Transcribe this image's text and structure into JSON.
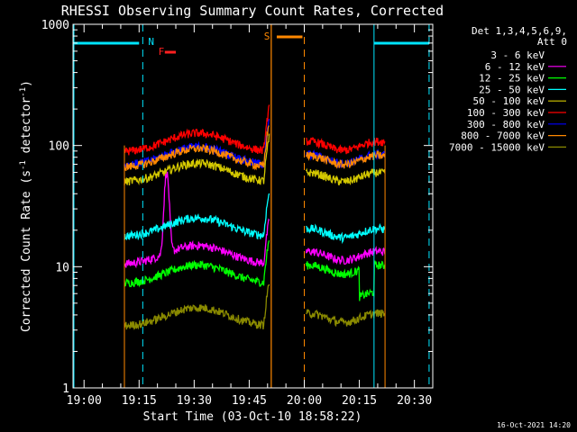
{
  "chart_data": {
    "type": "line",
    "title": "RHESSI Observing Summary Count Rates, Corrected",
    "xlabel": "Start Time (03-Oct-10 18:58:22)",
    "ylabel": "Corrected Count Rate (s⁻¹ detector⁻¹)",
    "ylabel_parts": {
      "a": "Corrected Count Rate (s",
      "b": "-1",
      "c": " detector",
      "d": "-1",
      "e": ")"
    },
    "yscale": "log",
    "ylim": [
      1,
      1000
    ],
    "xlim_minutes": [
      -3,
      95
    ],
    "x_ticks": [
      {
        "label": "19:00",
        "minute": 0
      },
      {
        "label": "19:15",
        "minute": 15
      },
      {
        "label": "19:30",
        "minute": 30
      },
      {
        "label": "19:45",
        "minute": 45
      },
      {
        "label": "20:00",
        "minute": 60
      },
      {
        "label": "20:15",
        "minute": 75
      },
      {
        "label": "20:30",
        "minute": 90
      }
    ],
    "y_ticks": [
      {
        "label": "1",
        "value": 1
      },
      {
        "label": "10",
        "value": 10
      },
      {
        "label": "100",
        "value": 100
      },
      {
        "label": "1000",
        "value": 1000
      }
    ],
    "legend_header": [
      "Det 1,3,4,5,6,9,",
      "Att 0"
    ],
    "series": [
      {
        "name": "3 - 6 keV",
        "color": "#000000"
      },
      {
        "name": "6 - 12 keV",
        "color": "#ff00ff"
      },
      {
        "name": "12 - 25 keV",
        "color": "#00ff00"
      },
      {
        "name": "25 - 50 keV",
        "color": "#00ffff"
      },
      {
        "name": "50 - 100 keV",
        "color": "#d4c800"
      },
      {
        "name": "100 - 300 keV",
        "color": "#ff0000"
      },
      {
        "name": "300 - 800 keV",
        "color": "#0000ff"
      },
      {
        "name": "800 - 7000 keV",
        "color": "#ff8800"
      },
      {
        "name": "7000 - 15000 keV",
        "color": "#8a8a00"
      }
    ],
    "approx_levels": {
      "3 - 6 keV": {
        "pre_gap": 3,
        "post_gap": 3
      },
      "6 - 12 keV": {
        "pre_gap": 13,
        "peak": 60,
        "post_gap": 13
      },
      "12 - 25 keV": {
        "pre_gap": 9,
        "post_gap": 10
      },
      "25 - 50 keV": {
        "pre_gap": 22,
        "post_gap": 20
      },
      "50 - 100 keV": {
        "pre_gap": 62,
        "post_gap": 58
      },
      "100 - 300 keV": {
        "pre_gap": 110,
        "post_gap": 105
      },
      "300 - 800 keV": {
        "pre_gap": 85,
        "post_gap": 82
      },
      "800 - 7000 keV": {
        "pre_gap": 82,
        "post_gap": 80
      },
      "7000 - 15000 keV": {
        "pre_gap": 4,
        "post_gap": 4
      }
    },
    "flag_labels": {
      "night": "N",
      "flare": "F",
      "saa": "S"
    },
    "night_intervals_minutes": [
      [
        -3,
        16
      ],
      [
        79,
        94
      ]
    ],
    "saa_interval_minutes": [
      52,
      58
    ],
    "flare_interval_minutes": [
      22,
      25
    ],
    "data_gaps_minutes": [
      [
        9,
        10
      ],
      [
        51,
        60
      ]
    ],
    "timestamp": "16-Oct-2021 14:20"
  }
}
